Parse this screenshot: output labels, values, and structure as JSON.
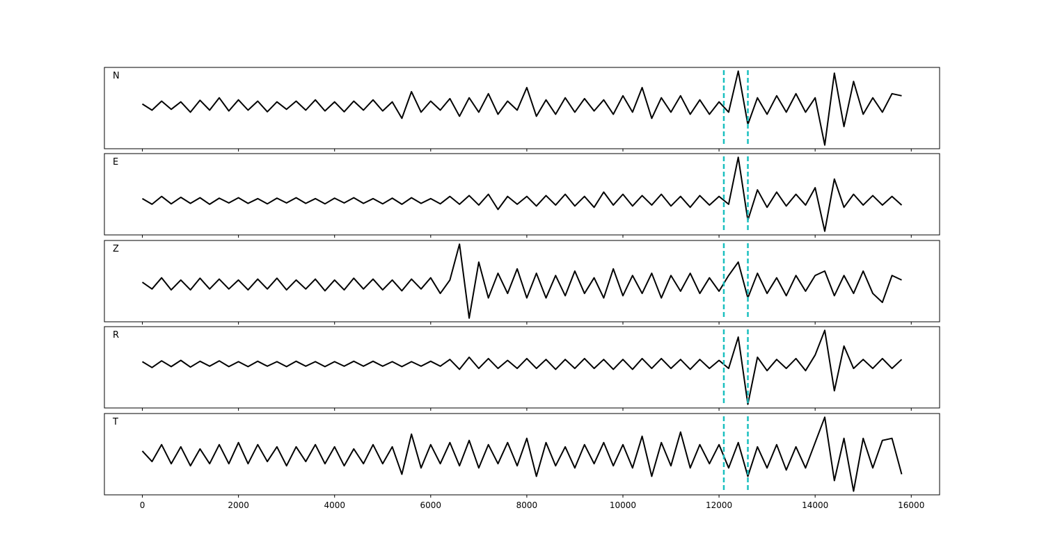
{
  "chart_data": {
    "type": "line",
    "x_start": 0,
    "x_step": 200,
    "xlim": [
      -790,
      16590
    ],
    "x_ticks": [
      0,
      2000,
      4000,
      6000,
      8000,
      10000,
      12000,
      14000,
      16000
    ],
    "x_tick_labels": [
      "0",
      "2000",
      "4000",
      "6000",
      "8000",
      "10000",
      "12000",
      "14000",
      "16000"
    ],
    "grid": false,
    "line_color": "#000000",
    "markers": {
      "x": [
        12100,
        12600
      ],
      "color": "#1abfbf",
      "style": "dashed"
    },
    "panels": [
      {
        "label": "N",
        "values": [
          0.05,
          -0.1,
          0.12,
          -0.08,
          0.1,
          -0.15,
          0.14,
          -0.1,
          0.2,
          -0.12,
          0.15,
          -0.1,
          0.12,
          -0.14,
          0.1,
          -0.08,
          0.12,
          -0.1,
          0.15,
          -0.12,
          0.1,
          -0.14,
          0.12,
          -0.1,
          0.15,
          -0.12,
          0.1,
          -0.3,
          0.35,
          -0.15,
          0.12,
          -0.1,
          0.18,
          -0.25,
          0.2,
          -0.15,
          0.3,
          -0.2,
          0.12,
          -0.1,
          0.45,
          -0.25,
          0.15,
          -0.2,
          0.2,
          -0.15,
          0.18,
          -0.12,
          0.15,
          -0.2,
          0.25,
          -0.15,
          0.45,
          -0.3,
          0.2,
          -0.15,
          0.25,
          -0.2,
          0.15,
          -0.2,
          0.1,
          -0.15,
          0.85,
          -0.45,
          0.2,
          -0.2,
          0.25,
          -0.15,
          0.3,
          -0.15,
          0.2,
          -0.95,
          0.8,
          -0.5,
          0.6,
          -0.2,
          0.2,
          -0.15,
          0.3,
          0.25
        ]
      },
      {
        "label": "E",
        "values": [
          0.05,
          -0.08,
          0.1,
          -0.07,
          0.08,
          -0.06,
          0.07,
          -0.08,
          0.06,
          -0.05,
          0.07,
          -0.06,
          0.05,
          -0.07,
          0.06,
          -0.05,
          0.07,
          -0.06,
          0.05,
          -0.07,
          0.06,
          -0.05,
          0.07,
          -0.06,
          0.05,
          -0.07,
          0.06,
          -0.08,
          0.07,
          -0.06,
          0.05,
          -0.07,
          0.1,
          -0.08,
          0.12,
          -0.1,
          0.15,
          -0.2,
          0.1,
          -0.08,
          0.1,
          -0.12,
          0.12,
          -0.1,
          0.15,
          -0.12,
          0.1,
          -0.15,
          0.2,
          -0.1,
          0.15,
          -0.12,
          0.12,
          -0.1,
          0.15,
          -0.12,
          0.1,
          -0.15,
          0.12,
          -0.1,
          0.1,
          -0.08,
          1.0,
          -0.45,
          0.25,
          -0.15,
          0.2,
          -0.12,
          0.15,
          -0.1,
          0.3,
          -0.7,
          0.5,
          -0.15,
          0.15,
          -0.1,
          0.12,
          -0.1,
          0.1,
          -0.1
        ]
      },
      {
        "label": "Z",
        "values": [
          0.05,
          -0.1,
          0.15,
          -0.12,
          0.1,
          -0.12,
          0.14,
          -0.1,
          0.12,
          -0.1,
          0.1,
          -0.12,
          0.12,
          -0.1,
          0.14,
          -0.12,
          0.1,
          -0.1,
          0.12,
          -0.14,
          0.1,
          -0.12,
          0.14,
          -0.1,
          0.12,
          -0.12,
          0.1,
          -0.14,
          0.12,
          -0.1,
          0.15,
          -0.2,
          0.1,
          0.9,
          -0.75,
          0.5,
          -0.3,
          0.25,
          -0.2,
          0.35,
          -0.3,
          0.25,
          -0.3,
          0.2,
          -0.25,
          0.3,
          -0.2,
          0.15,
          -0.3,
          0.35,
          -0.25,
          0.2,
          -0.2,
          0.25,
          -0.3,
          0.2,
          -0.15,
          0.25,
          -0.2,
          0.15,
          -0.15,
          0.2,
          0.5,
          -0.3,
          0.25,
          -0.2,
          0.15,
          -0.25,
          0.2,
          -0.15,
          0.2,
          0.3,
          -0.25,
          0.2,
          -0.2,
          0.3,
          -0.2,
          -0.4,
          0.2,
          0.1
        ]
      },
      {
        "label": "R",
        "values": [
          0.05,
          -0.08,
          0.07,
          -0.06,
          0.08,
          -0.07,
          0.06,
          -0.05,
          0.07,
          -0.06,
          0.05,
          -0.06,
          0.06,
          -0.05,
          0.05,
          -0.06,
          0.06,
          -0.05,
          0.05,
          -0.06,
          0.05,
          -0.05,
          0.06,
          -0.05,
          0.06,
          -0.05,
          0.05,
          -0.06,
          0.05,
          -0.05,
          0.06,
          -0.05,
          0.1,
          -0.12,
          0.15,
          -0.1,
          0.12,
          -0.1,
          0.08,
          -0.1,
          0.12,
          -0.1,
          0.1,
          -0.12,
          0.1,
          -0.1,
          0.12,
          -0.1,
          0.1,
          -0.12,
          0.1,
          -0.12,
          0.12,
          -0.1,
          0.12,
          -0.1,
          0.1,
          -0.12,
          0.1,
          -0.1,
          0.08,
          -0.1,
          0.6,
          -0.9,
          0.15,
          -0.15,
          0.1,
          -0.1,
          0.12,
          -0.15,
          0.2,
          0.75,
          -0.6,
          0.4,
          -0.1,
          0.1,
          -0.1,
          0.12,
          -0.1,
          0.1
        ]
      },
      {
        "label": "T",
        "values": [
          0.1,
          -0.15,
          0.25,
          -0.2,
          0.2,
          -0.25,
          0.15,
          -0.2,
          0.25,
          -0.2,
          0.3,
          -0.2,
          0.25,
          -0.15,
          0.2,
          -0.25,
          0.2,
          -0.15,
          0.25,
          -0.2,
          0.2,
          -0.25,
          0.15,
          -0.2,
          0.25,
          -0.2,
          0.2,
          -0.45,
          0.5,
          -0.3,
          0.25,
          -0.2,
          0.3,
          -0.25,
          0.35,
          -0.3,
          0.25,
          -0.2,
          0.3,
          -0.25,
          0.4,
          -0.5,
          0.3,
          -0.25,
          0.2,
          -0.3,
          0.25,
          -0.2,
          0.3,
          -0.25,
          0.25,
          -0.3,
          0.45,
          -0.5,
          0.3,
          -0.25,
          0.55,
          -0.3,
          0.25,
          -0.2,
          0.25,
          -0.3,
          0.3,
          -0.5,
          0.2,
          -0.3,
          0.25,
          -0.35,
          0.2,
          -0.3,
          0.3,
          0.9,
          -0.6,
          0.4,
          -0.85,
          0.4,
          -0.3,
          0.35,
          0.4,
          -0.45
        ]
      }
    ]
  }
}
